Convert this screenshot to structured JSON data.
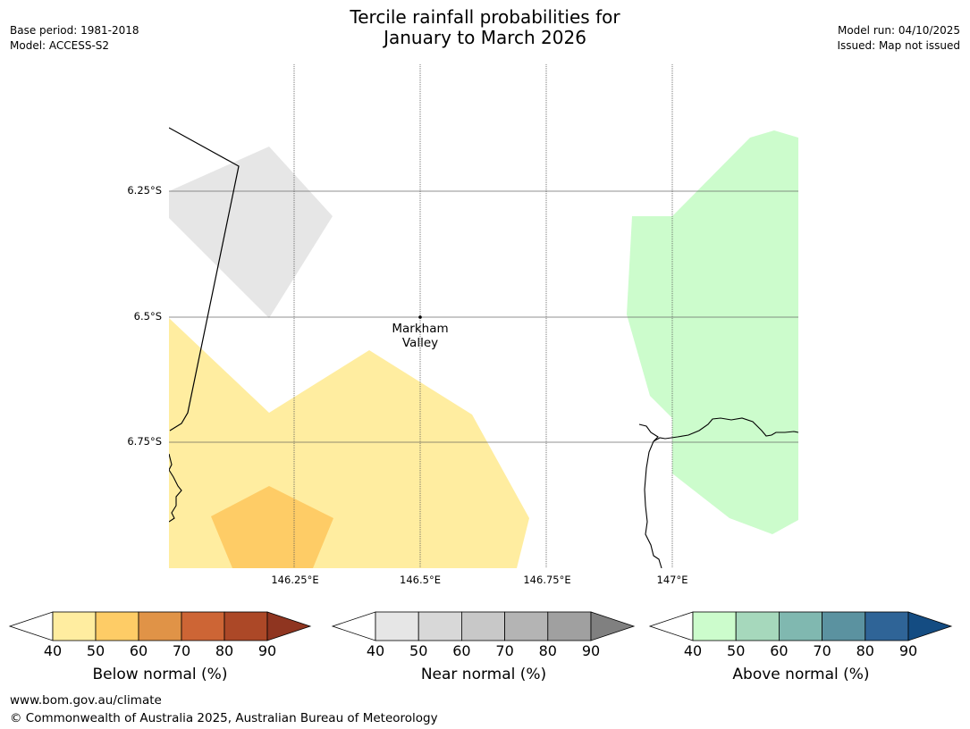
{
  "title": {
    "line1": "Tercile rainfall probabilities for",
    "line2": "January to March 2026"
  },
  "meta_left": {
    "base_period": "Base period: 1981-2018",
    "model": "Model: ACCESS-S2"
  },
  "meta_right": {
    "model_run": "Model run: 04/10/2025",
    "issued": "Issued: Map not issued"
  },
  "map": {
    "latitude_labels": [
      "6.25°S",
      "6.5°S",
      "6.75°S"
    ],
    "longitude_labels": [
      "146.25°E",
      "146.5°E",
      "146.75°E",
      "147°E"
    ],
    "place": {
      "line1": "Markham",
      "line2": "Valley"
    }
  },
  "legends": {
    "ticks": [
      "40",
      "50",
      "60",
      "70",
      "80",
      "90"
    ],
    "below": {
      "title": "Below normal (%)",
      "colors": [
        "#ffeda0",
        "#fecc66",
        "#e09347",
        "#cd6535",
        "#ac4827",
        "#8f3520"
      ]
    },
    "near": {
      "title": "Near normal (%)",
      "colors": [
        "#e6e6e6",
        "#d8d8d8",
        "#c8c8c8",
        "#b4b4b4",
        "#a0a0a0",
        "#808080"
      ]
    },
    "above": {
      "title": "Above normal (%)",
      "colors": [
        "#ccfccc",
        "#a6d8bc",
        "#80b8b0",
        "#5b92a0",
        "#2f6497",
        "#144c82"
      ]
    }
  },
  "footer": {
    "url": "www.bom.gov.au/climate",
    "copyright": "© Commonwealth of Australia 2025, Australian Bureau of Meteorology"
  }
}
